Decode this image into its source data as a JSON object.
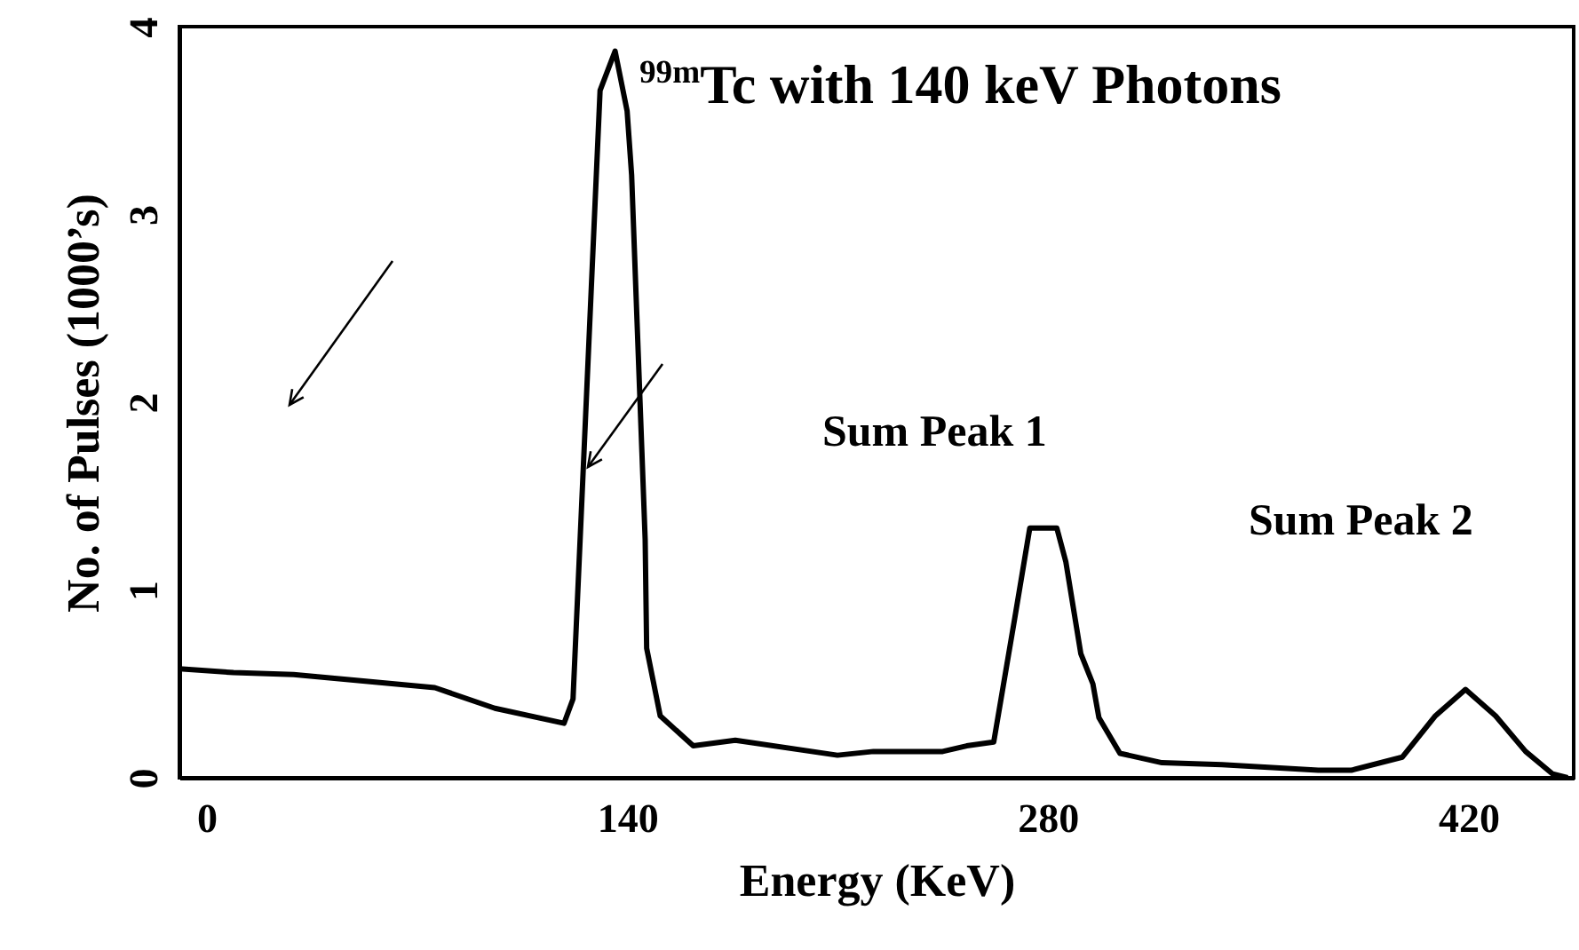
{
  "chart_data": {
    "type": "line",
    "xlabel": "Energy (KeV)",
    "ylabel": "No. of Pulses (1000’s)",
    "annotations": [
      "$^{99m}$Tc with 140 keV Photons",
      "Sum Peak 1",
      "Sum Peak 2"
    ],
    "xlim": [
      -9,
      455
    ],
    "xticks": [
      0,
      140,
      280,
      420
    ],
    "ylim": [
      0,
      4
    ],
    "yticks": [
      0,
      1,
      2,
      3,
      4
    ],
    "grid": false,
    "line_style": "solid",
    "marker": "none",
    "series": [
      {
        "color": "#000000",
        "x": [
          -9,
          9,
          29,
          76,
          96,
          119,
          122,
          131,
          136,
          140,
          141.5,
          143,
          146,
          146.5,
          151,
          162,
          176,
          210,
          222,
          245,
          253,
          262,
          269,
          274,
          283,
          286,
          291,
          295,
          297,
          304,
          318,
          338,
          370,
          381,
          398,
          409,
          419,
          429,
          439,
          448,
          453
        ],
        "values": [
          0.58,
          0.56,
          0.55,
          0.48,
          0.37,
          0.29,
          0.42,
          3.66,
          3.87,
          3.55,
          3.21,
          2.56,
          1.27,
          0.69,
          0.33,
          0.17,
          0.2,
          0.12,
          0.14,
          0.14,
          0.17,
          0.19,
          0.85,
          1.33,
          1.33,
          1.15,
          0.66,
          0.5,
          0.32,
          0.13,
          0.08,
          0.07,
          0.04,
          0.04,
          0.11,
          0.33,
          0.47,
          0.33,
          0.14,
          0.02,
          0
        ]
      }
    ]
  }
}
